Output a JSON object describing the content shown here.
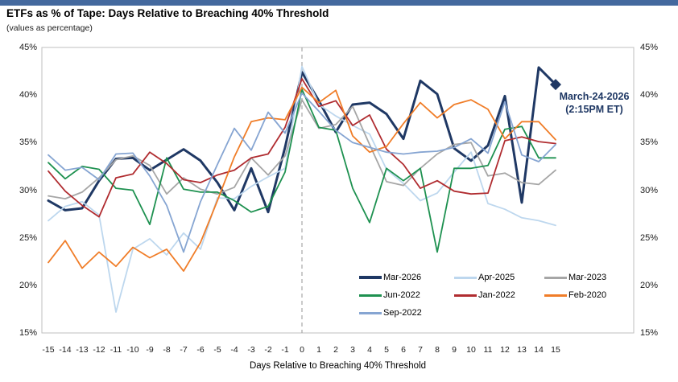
{
  "header": {
    "title": "ETFs as % of Tape: Days Relative to Breaching 40% Threshold",
    "subtitle": "(values as percentage)",
    "topbar_color": "#44699E"
  },
  "chart_data": {
    "type": "line",
    "title": "ETFs as % of Tape: Days Relative to Breaching 40% Threshold",
    "subtitle": "(values as percentage)",
    "xlabel": "Days Relative to Breaching 40% Threshold",
    "ylabel": "",
    "x": [
      -15,
      -14,
      -13,
      -12,
      -11,
      -10,
      -9,
      -8,
      -7,
      -6,
      -5,
      -4,
      -3,
      -2,
      -1,
      0,
      1,
      2,
      3,
      4,
      5,
      6,
      7,
      8,
      9,
      10,
      11,
      12,
      13,
      14,
      15
    ],
    "ylim": [
      15,
      45
    ],
    "ytick_labels": [
      "45%",
      "40%",
      "35%",
      "30%",
      "25%",
      "20%",
      "15%"
    ],
    "grid": "off",
    "reference_line_x": 0,
    "legend_position": "inside-bottom-right",
    "series": [
      {
        "name": "Mar-2026",
        "color": "#1F3864",
        "width": 3,
        "values": [
          28.9,
          27.9,
          28.1,
          31.0,
          33.3,
          33.4,
          32.1,
          33.2,
          34.3,
          33.1,
          30.8,
          27.9,
          32.3,
          27.7,
          34.5,
          42.4,
          39.4,
          36.1,
          39.0,
          39.2,
          38.0,
          35.4,
          41.5,
          40.1,
          34.4,
          33.1,
          34.7,
          39.9,
          28.7,
          42.9,
          41.1
        ]
      },
      {
        "name": "Apr-2025",
        "color": "#BDD7EE",
        "width": 1.8,
        "values": [
          26.8,
          28.3,
          28.8,
          27.4,
          17.2,
          23.8,
          24.9,
          23.2,
          25.5,
          23.8,
          29.2,
          29.1,
          30.4,
          31.4,
          32.3,
          43.0,
          39.0,
          37.8,
          36.8,
          35.9,
          32.2,
          30.7,
          28.9,
          29.7,
          31.9,
          34.0,
          28.6,
          28.0,
          27.1,
          26.8,
          26.3
        ]
      },
      {
        "name": "Mar-2023",
        "color": "#A6A6A6",
        "width": 1.8,
        "values": [
          29.4,
          29.1,
          29.8,
          31.3,
          33.2,
          33.6,
          32.6,
          29.6,
          31.3,
          30.1,
          29.6,
          30.3,
          33.4,
          31.6,
          33.6,
          39.5,
          36.5,
          36.9,
          38.8,
          34.8,
          30.9,
          30.5,
          32.3,
          33.8,
          34.8,
          35.0,
          31.5,
          31.8,
          30.8,
          30.6,
          32.1
        ]
      },
      {
        "name": "Jun-2022",
        "color": "#1E9150",
        "width": 1.8,
        "values": [
          32.9,
          31.2,
          32.5,
          32.2,
          30.2,
          30.0,
          26.4,
          33.4,
          30.1,
          29.8,
          29.8,
          28.9,
          27.7,
          28.3,
          31.9,
          40.6,
          36.6,
          36.3,
          30.2,
          26.6,
          32.3,
          31.0,
          32.3,
          23.5,
          32.3,
          32.3,
          32.6,
          36.4,
          36.7,
          33.4,
          33.4
        ]
      },
      {
        "name": "Jan-2022",
        "color": "#B02C30",
        "width": 1.8,
        "values": [
          32.0,
          29.9,
          28.4,
          27.2,
          31.3,
          31.7,
          34.0,
          32.8,
          31.1,
          30.8,
          31.6,
          32.1,
          33.4,
          33.8,
          36.6,
          41.7,
          38.8,
          39.4,
          36.8,
          37.9,
          34.3,
          32.7,
          30.2,
          31.0,
          29.9,
          29.6,
          29.7,
          35.2,
          35.6,
          35.1,
          34.9
        ]
      },
      {
        "name": "Feb-2020",
        "color": "#F07D28",
        "width": 1.8,
        "values": [
          22.4,
          24.7,
          21.8,
          23.5,
          22.0,
          24.0,
          22.9,
          23.8,
          21.5,
          24.5,
          28.9,
          33.5,
          37.2,
          37.6,
          37.4,
          40.8,
          39.2,
          40.5,
          35.7,
          34.0,
          34.6,
          37.0,
          39.2,
          37.6,
          39.0,
          39.5,
          38.5,
          35.4,
          37.2,
          37.2,
          35.3
        ]
      },
      {
        "name": "Sep-2022",
        "color": "#86A5D2",
        "width": 1.8,
        "values": [
          33.7,
          32.1,
          32.4,
          31.1,
          33.8,
          33.9,
          31.5,
          28.4,
          23.5,
          28.8,
          32.7,
          36.5,
          34.2,
          38.2,
          36.0,
          40.2,
          38.3,
          36.3,
          35.0,
          34.5,
          34.0,
          33.8,
          34.0,
          34.1,
          34.5,
          35.4,
          33.9,
          39.3,
          33.7,
          33.0,
          34.8
        ]
      }
    ],
    "annotation": {
      "line1": "March-24-2026",
      "line2": "(2:15PM ET)",
      "marker": "diamond",
      "marker_x": 15,
      "marker_y": 41.1,
      "color": "#1F3864"
    }
  },
  "legend": {
    "items": [
      {
        "label": "Mar-2026",
        "color": "#1F3864",
        "thick": true
      },
      {
        "label": "Apr-2025",
        "color": "#BDD7EE",
        "thick": false
      },
      {
        "label": "Mar-2023",
        "color": "#A6A6A6",
        "thick": false
      },
      {
        "label": "Jun-2022",
        "color": "#1E9150",
        "thick": false
      },
      {
        "label": "Jan-2022",
        "color": "#B02C30",
        "thick": false
      },
      {
        "label": "Feb-2020",
        "color": "#F07D28",
        "thick": false
      },
      {
        "label": "Sep-2022",
        "color": "#86A5D2",
        "thick": false
      }
    ]
  },
  "axes": {
    "x_ticks": [
      "-15",
      "-14",
      "-13",
      "-12",
      "-11",
      "-10",
      "-9",
      "-8",
      "-7",
      "-6",
      "-5",
      "-4",
      "-3",
      "-2",
      "-1",
      "0",
      "1",
      "2",
      "3",
      "4",
      "5",
      "6",
      "7",
      "8",
      "9",
      "10",
      "11",
      "12",
      "13",
      "14",
      "15"
    ],
    "y_ticks_left": [
      "45%",
      "40%",
      "35%",
      "30%",
      "25%",
      "20%",
      "15%"
    ],
    "y_ticks_right": [
      "45%",
      "40%",
      "35%",
      "30%",
      "25%",
      "20%",
      "15%"
    ],
    "x_axis_title": "Days Relative to Breaching 40% Threshold"
  }
}
